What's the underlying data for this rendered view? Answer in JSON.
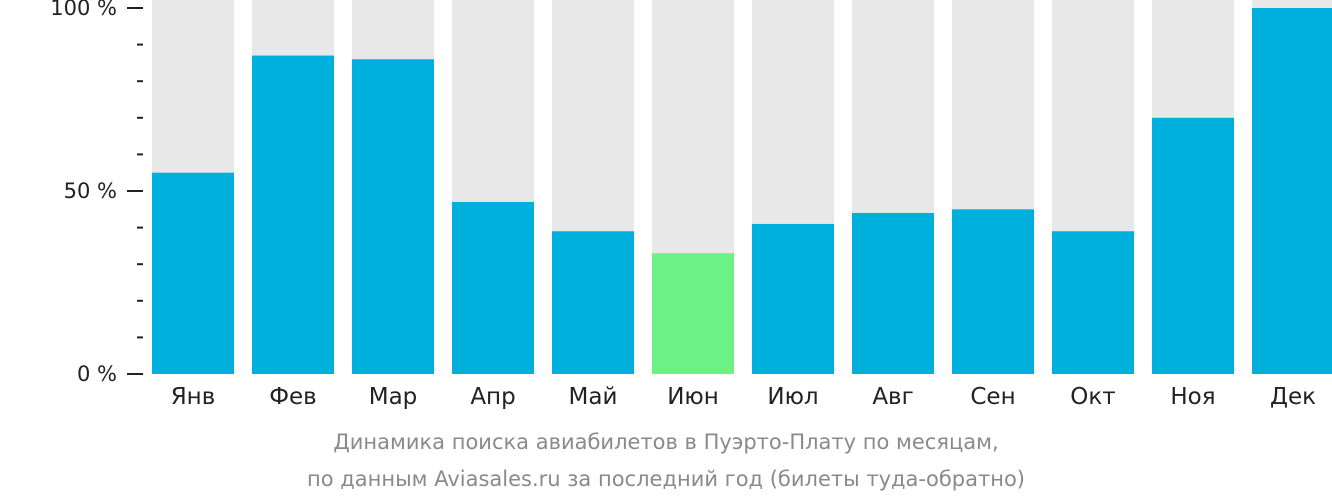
{
  "chart_data": {
    "type": "bar",
    "categories": [
      "Янв",
      "Фев",
      "Мар",
      "Апр",
      "Май",
      "Июн",
      "Июл",
      "Авг",
      "Сен",
      "Окт",
      "Ноя",
      "Дек"
    ],
    "values": [
      55,
      87,
      86,
      47,
      39,
      33,
      41,
      44,
      45,
      39,
      70,
      100
    ],
    "ylim": [
      0,
      100
    ],
    "yticks": [
      {
        "value": 100,
        "label": "100 %"
      },
      {
        "value": 50,
        "label": "50 %"
      },
      {
        "value": 0,
        "label": "0 %"
      }
    ],
    "highlight_index": 5,
    "title": "",
    "xlabel": "",
    "ylabel": ""
  },
  "caption": {
    "line1": "Динамика поиска авиабилетов в Пуэрто-Плату по месяцам,",
    "line2": "по данным Aviasales.ru за последний год (билеты туда-обратно)"
  },
  "colors": {
    "bar": "#00b0dc",
    "highlight": "#6bf186",
    "track": "#e8e8e8",
    "axis": "#222222"
  }
}
